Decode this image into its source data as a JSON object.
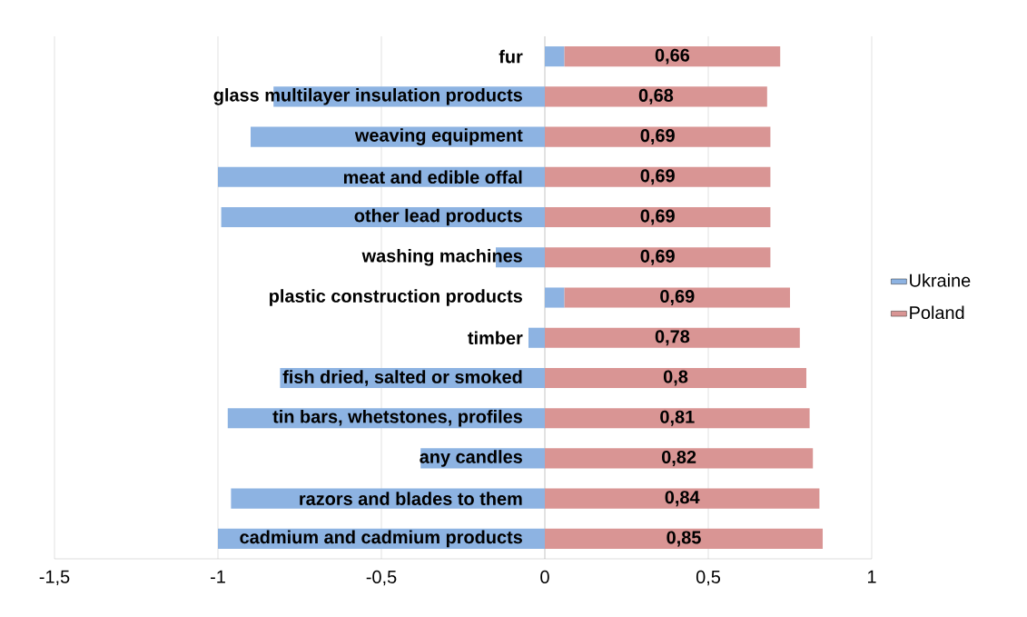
{
  "chart_data": {
    "type": "bar",
    "orientation": "horizontal",
    "stacked": true,
    "categories": [
      "fur",
      "glass multilayer insulation products",
      "weaving equipment",
      "meat and edible offal",
      "other lead products",
      "washing machines",
      "plastic construction products",
      "timber",
      "fish dried, salted or smoked",
      "tin bars, whetstones, profiles",
      "any candles",
      "razors and blades to them",
      "cadmium and cadmium products"
    ],
    "series": [
      {
        "name": "Ukraine",
        "color": "#8db3e2",
        "values": [
          0.06,
          -0.83,
          -0.9,
          -1.0,
          -0.99,
          -0.15,
          0.06,
          -0.05,
          -0.81,
          -0.97,
          -0.38,
          -0.96,
          -1.0
        ]
      },
      {
        "name": "Poland",
        "color": "#d99594",
        "values": [
          0.66,
          0.68,
          0.69,
          0.69,
          0.69,
          0.69,
          0.69,
          0.78,
          0.8,
          0.81,
          0.82,
          0.84,
          0.85
        ],
        "value_labels": [
          "0,66",
          "0,68",
          "0,69",
          "0,69",
          "0,69",
          "0,69",
          "0,69",
          "0,78",
          "0,8",
          "0,81",
          "0,82",
          "0,84",
          "0,85"
        ]
      }
    ],
    "xlim": [
      -1.5,
      1
    ],
    "xticks": [
      {
        "value": -1.5,
        "label": "-1,5"
      },
      {
        "value": -1,
        "label": "-1"
      },
      {
        "value": -0.5,
        "label": "-0,5"
      },
      {
        "value": 0,
        "label": "0"
      },
      {
        "value": 0.5,
        "label": "0,5"
      },
      {
        "value": 1,
        "label": "1"
      }
    ],
    "grid": "x",
    "legend": "right"
  }
}
